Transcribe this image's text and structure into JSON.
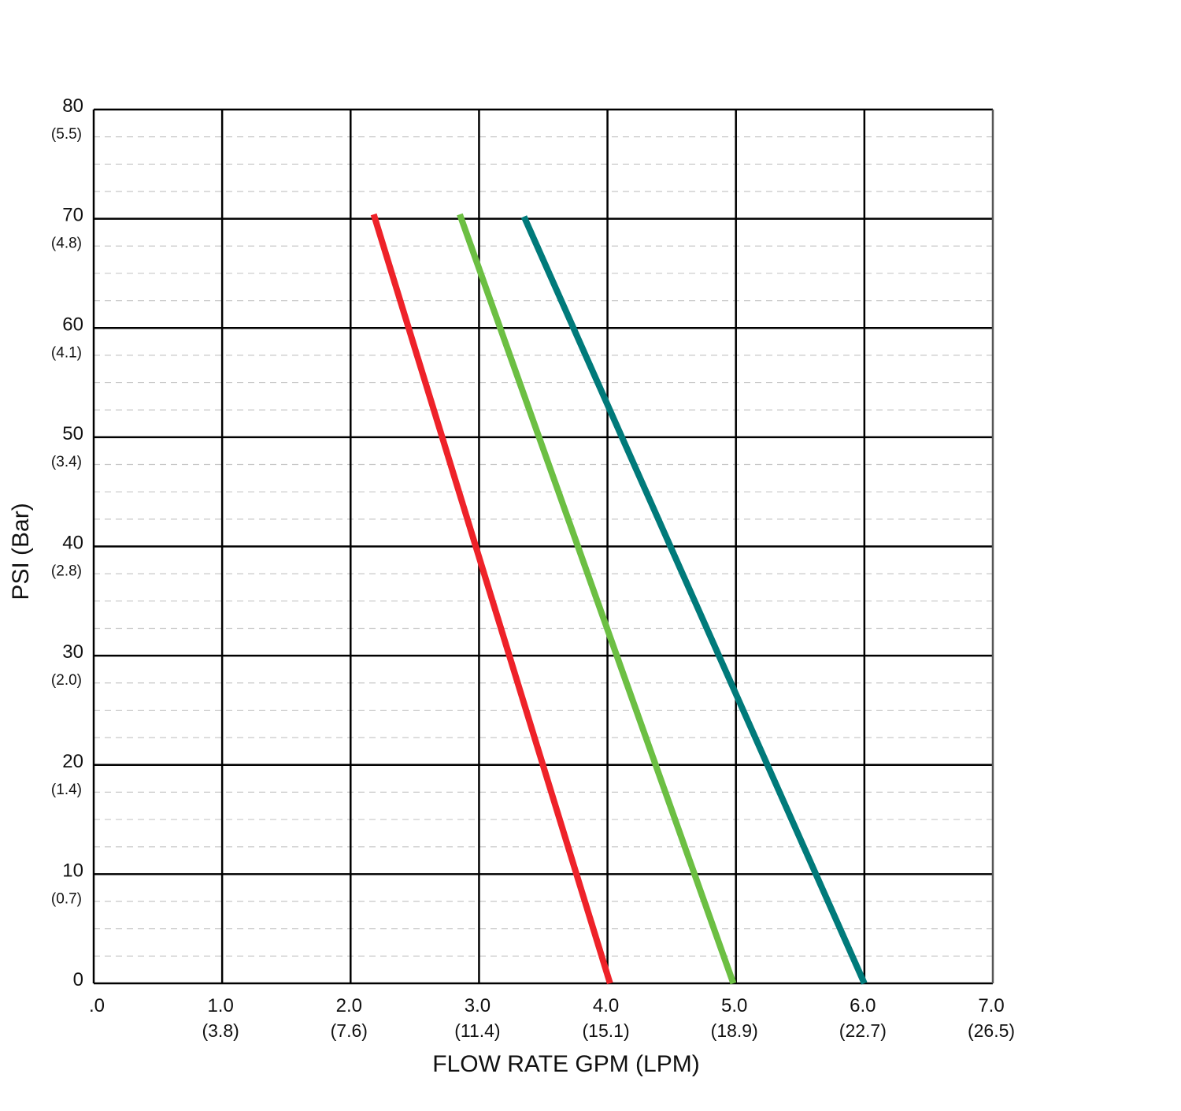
{
  "chart_data": {
    "type": "line",
    "title": "",
    "xlabel": "FLOW RATE GPM (LPM)",
    "ylabel": "PSI (Bar)",
    "xlim": [
      0,
      7
    ],
    "ylim": [
      0,
      80
    ],
    "grid": {
      "major": true,
      "minor_dashed_y": true,
      "minor_step_y": 2.5
    },
    "x_ticks": [
      {
        "value": 0,
        "label": ".0",
        "sub": ""
      },
      {
        "value": 1,
        "label": "1.0",
        "sub": "(3.8)"
      },
      {
        "value": 2,
        "label": "2.0",
        "sub": "(7.6)"
      },
      {
        "value": 3,
        "label": "3.0",
        "sub": "(11.4)"
      },
      {
        "value": 4,
        "label": "4.0",
        "sub": "(15.1)"
      },
      {
        "value": 5,
        "label": "5.0",
        "sub": "(18.9)"
      },
      {
        "value": 6,
        "label": "6.0",
        "sub": "(22.7)"
      },
      {
        "value": 7,
        "label": "7.0",
        "sub": "(26.5)"
      }
    ],
    "y_ticks": [
      {
        "value": 80,
        "label": "80",
        "sub": "(5.5)"
      },
      {
        "value": 70,
        "label": "70",
        "sub": "(4.8)"
      },
      {
        "value": 60,
        "label": "60",
        "sub": "(4.1)"
      },
      {
        "value": 50,
        "label": "50",
        "sub": "(3.4)"
      },
      {
        "value": 40,
        "label": "40",
        "sub": "(2.8)"
      },
      {
        "value": 30,
        "label": "30",
        "sub": "(2.0)"
      },
      {
        "value": 20,
        "label": "20",
        "sub": "(1.4)"
      },
      {
        "value": 10,
        "label": "10",
        "sub": "(0.7)"
      },
      {
        "value": 0,
        "label": "0",
        "sub": ""
      }
    ],
    "series": [
      {
        "color": "#ee2229",
        "points": [
          [
            2.18,
            70.4
          ],
          [
            4.02,
            0
          ]
        ]
      },
      {
        "color": "#6cbf43",
        "points": [
          [
            2.85,
            70.4
          ],
          [
            4.98,
            0
          ]
        ]
      },
      {
        "color": "#007a7a",
        "points": [
          [
            3.35,
            70.2
          ],
          [
            6.0,
            0
          ]
        ]
      }
    ]
  }
}
